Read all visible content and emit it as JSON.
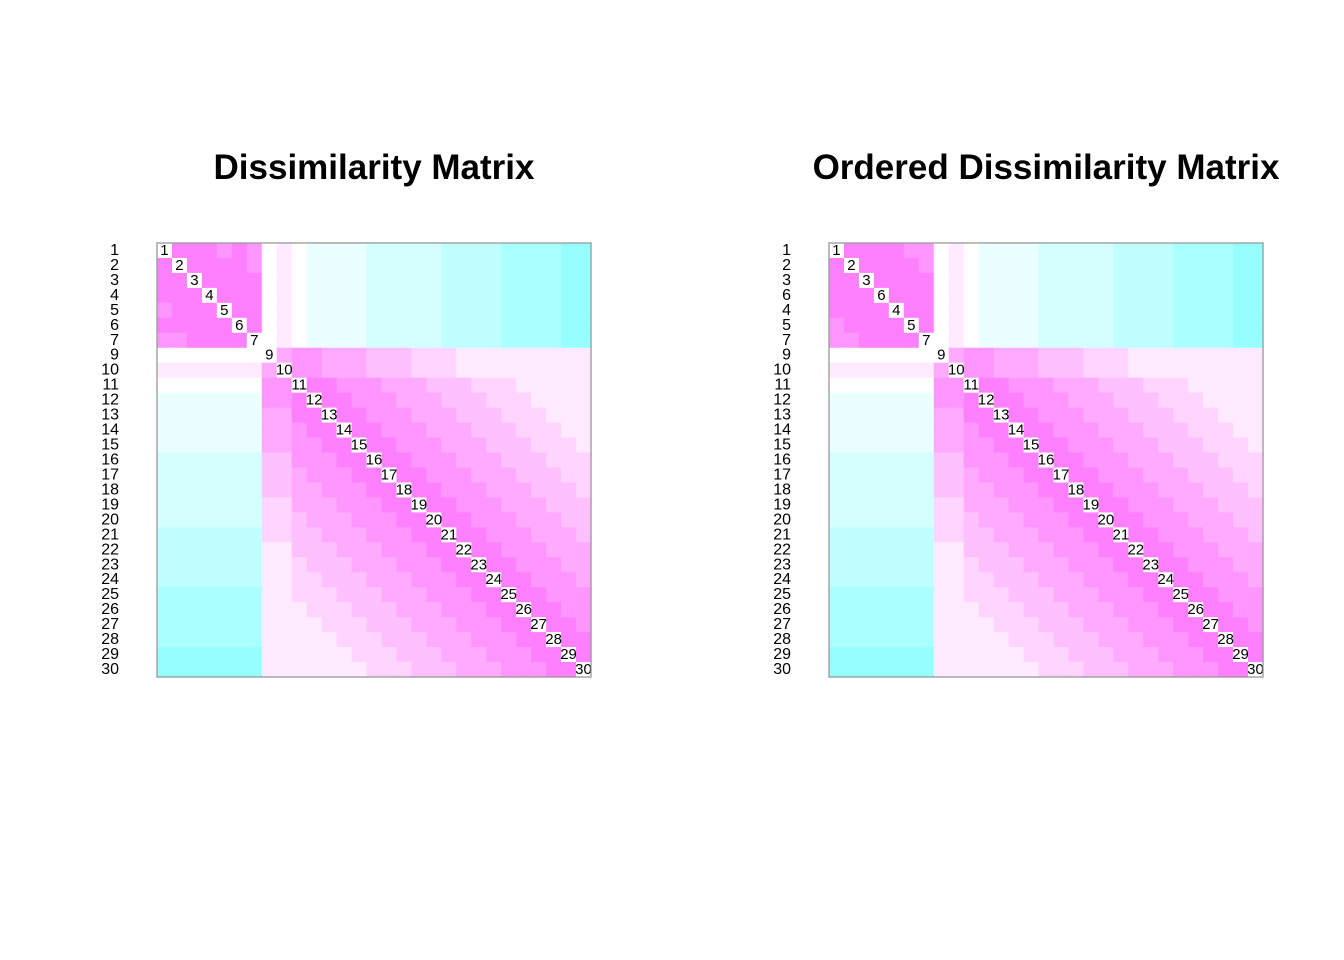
{
  "chart_data": [
    {
      "type": "heatmap",
      "title": "Dissimilarity Matrix",
      "order": [
        1,
        2,
        3,
        4,
        5,
        6,
        7,
        9,
        10,
        11,
        12,
        13,
        14,
        15,
        16,
        17,
        18,
        19,
        20,
        21,
        22,
        23,
        24,
        25,
        26,
        27,
        28,
        29,
        30
      ],
      "row_labels": [
        "1",
        "2",
        "3",
        "4",
        "5",
        "6",
        "7",
        "9",
        "10",
        "11",
        "12",
        "13",
        "14",
        "15",
        "16",
        "17",
        "18",
        "19",
        "20",
        "21",
        "22",
        "23",
        "24",
        "25",
        "26",
        "27",
        "28",
        "29",
        "30"
      ],
      "diagonal_labels": [
        "1",
        "2",
        "3",
        "4",
        "5",
        "6",
        "7",
        "9",
        "10",
        "11",
        "12",
        "13",
        "14",
        "15",
        "16",
        "17",
        "18",
        "19",
        "20",
        "21",
        "22",
        "23",
        "24",
        "25",
        "26",
        "27",
        "28",
        "29",
        "30"
      ],
      "color_low": "#ff80ff",
      "color_mid": "#ffffff",
      "color_high": "#80ffff",
      "legend": "none",
      "grid": false
    },
    {
      "type": "heatmap",
      "title": "Ordered Dissimilarity Matrix",
      "order": [
        1,
        2,
        3,
        6,
        4,
        5,
        7,
        9,
        10,
        11,
        12,
        13,
        14,
        15,
        16,
        17,
        18,
        19,
        20,
        21,
        22,
        23,
        24,
        25,
        26,
        27,
        28,
        29,
        30
      ],
      "row_labels": [
        "1",
        "2",
        "3",
        "6",
        "4",
        "5",
        "7",
        "9",
        "10",
        "11",
        "12",
        "13",
        "14",
        "15",
        "16",
        "17",
        "18",
        "19",
        "20",
        "21",
        "22",
        "23",
        "24",
        "25",
        "26",
        "27",
        "28",
        "29",
        "30"
      ],
      "diagonal_labels": [
        "1",
        "2",
        "3",
        "6",
        "4",
        "5",
        "7",
        "9",
        "10",
        "11",
        "12",
        "13",
        "14",
        "15",
        "16",
        "17",
        "18",
        "19",
        "20",
        "21",
        "22",
        "23",
        "24",
        "25",
        "26",
        "27",
        "28",
        "29",
        "30"
      ],
      "color_low": "#ff80ff",
      "color_mid": "#ffffff",
      "color_high": "#80ffff",
      "legend": "none",
      "grid": false
    }
  ]
}
